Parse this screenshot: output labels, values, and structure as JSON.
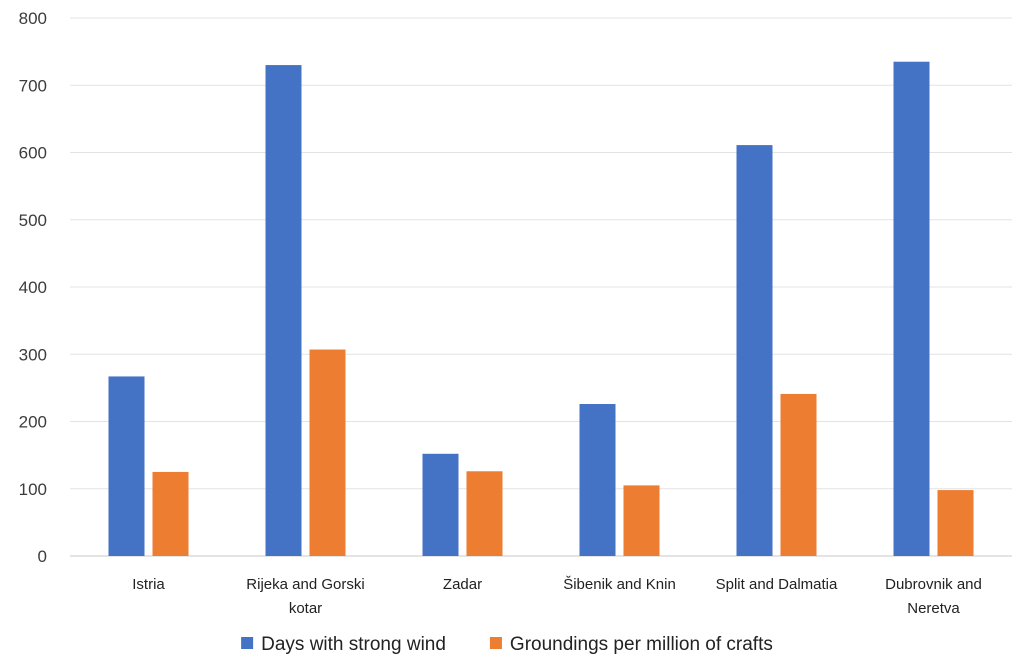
{
  "chart_data": {
    "type": "bar",
    "title": "",
    "xlabel": "",
    "ylabel": "",
    "ylim": [
      0,
      800
    ],
    "yticks": [
      0,
      100,
      200,
      300,
      400,
      500,
      600,
      700,
      800
    ],
    "grid": true,
    "legend_position": "bottom",
    "categories": [
      [
        "Istria"
      ],
      [
        "Rijeka and Gorski",
        "kotar"
      ],
      [
        "Zadar"
      ],
      [
        "Šibenik and Knin"
      ],
      [
        "Split and Dalmatia"
      ],
      [
        "Dubrovnik and",
        "Neretva"
      ]
    ],
    "series": [
      {
        "name": "Days with strong wind",
        "color": "#4472c4",
        "values": [
          267,
          730,
          152,
          226,
          611,
          735
        ]
      },
      {
        "name": "Groundings per million of crafts",
        "color": "#ed7d31",
        "values": [
          125,
          307,
          126,
          105,
          241,
          98
        ]
      }
    ]
  }
}
